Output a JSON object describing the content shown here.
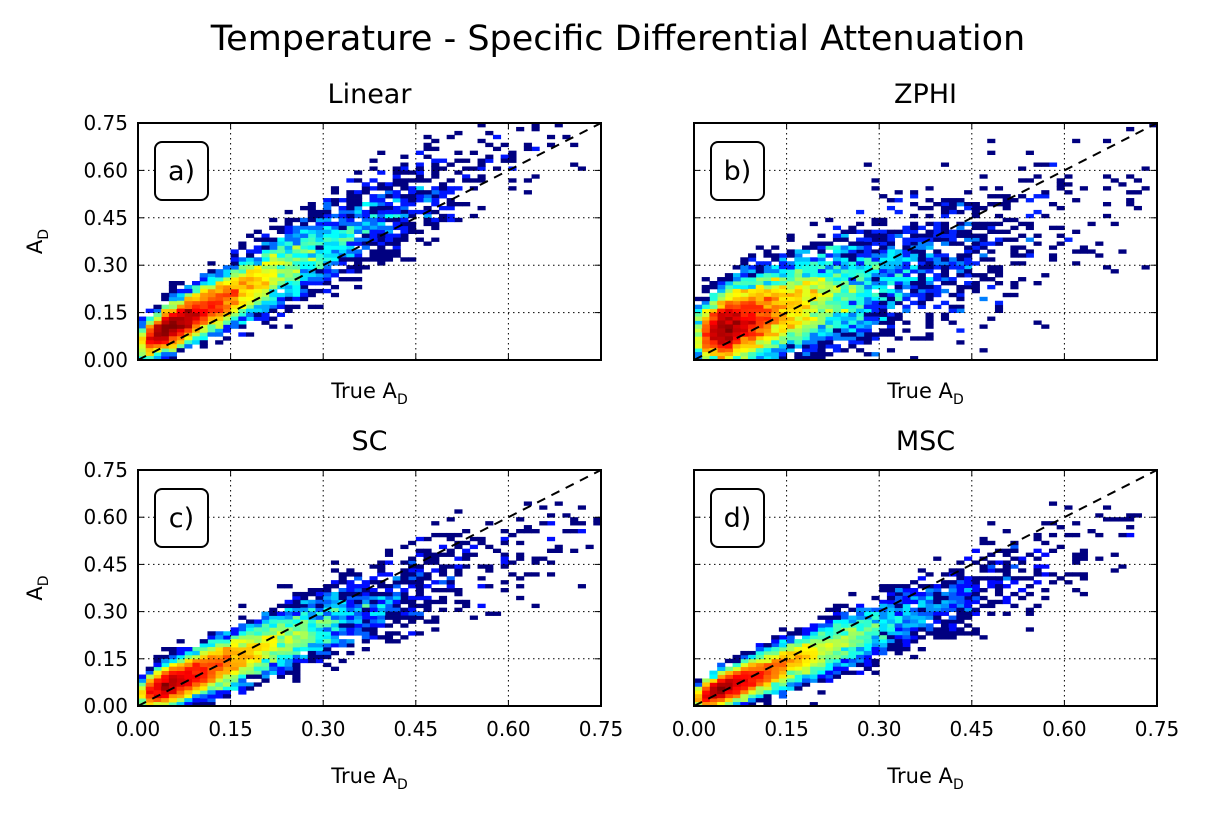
{
  "figure": {
    "title": "Temperature - Specific Differential Attenuation"
  },
  "chart_data": [
    {
      "type": "heatmap",
      "panel_label": "a)",
      "title": "Linear",
      "xlabel": "True A",
      "xlabel_sub": "D",
      "ylabel": "A",
      "ylabel_sub": "D",
      "xlim": [
        0,
        0.75
      ],
      "ylim": [
        0,
        0.75
      ],
      "x_ticks": [
        "0.00",
        "0.15",
        "0.30",
        "0.45",
        "0.60",
        "0.75"
      ],
      "x_ticks_shown": false,
      "y_ticks": [
        "0.00",
        "0.15",
        "0.30",
        "0.45",
        "0.60",
        "0.75"
      ],
      "y_ticks_shown": true,
      "grid": "dotted",
      "reference_line": "1:1 dashed",
      "colormap": "jet",
      "distribution": {
        "slope": 1.02,
        "intercept": 0.05,
        "core_spread": 0.025,
        "scatter_spread": 0.06,
        "x_peak": 0.05,
        "x_max": 0.72,
        "seed": 11
      }
    },
    {
      "type": "heatmap",
      "panel_label": "b)",
      "title": "ZPHI",
      "xlabel": "True A",
      "xlabel_sub": "D",
      "ylabel": "",
      "ylabel_sub": "",
      "xlim": [
        0,
        0.75
      ],
      "ylim": [
        0,
        0.75
      ],
      "x_ticks": [
        "0.00",
        "0.15",
        "0.30",
        "0.45",
        "0.60",
        "0.75"
      ],
      "x_ticks_shown": false,
      "y_ticks": [
        "0.00",
        "0.15",
        "0.30",
        "0.45",
        "0.60",
        "0.75"
      ],
      "y_ticks_shown": false,
      "grid": "dotted",
      "reference_line": "1:1 dashed",
      "colormap": "jet",
      "distribution": {
        "slope": 0.62,
        "intercept": 0.07,
        "core_spread": 0.045,
        "scatter_spread": 0.08,
        "x_peak": 0.05,
        "x_max": 0.75,
        "seed": 23
      }
    },
    {
      "type": "heatmap",
      "panel_label": "c)",
      "title": "SC",
      "xlabel": "True A",
      "xlabel_sub": "D",
      "ylabel": "A",
      "ylabel_sub": "D",
      "xlim": [
        0,
        0.75
      ],
      "ylim": [
        0,
        0.75
      ],
      "x_ticks": [
        "0.00",
        "0.15",
        "0.30",
        "0.45",
        "0.60",
        "0.75"
      ],
      "x_ticks_shown": true,
      "y_ticks": [
        "0.00",
        "0.15",
        "0.30",
        "0.45",
        "0.60",
        "0.75"
      ],
      "y_ticks_shown": true,
      "grid": "dotted",
      "reference_line": "1:1 dashed",
      "colormap": "jet",
      "distribution": {
        "slope": 0.76,
        "intercept": 0.03,
        "core_spread": 0.025,
        "scatter_spread": 0.045,
        "x_peak": 0.05,
        "x_max": 0.75,
        "seed": 37
      }
    },
    {
      "type": "heatmap",
      "panel_label": "d)",
      "title": "MSC",
      "xlabel": "True A",
      "xlabel_sub": "D",
      "ylabel": "",
      "ylabel_sub": "",
      "xlim": [
        0,
        0.75
      ],
      "ylim": [
        0,
        0.75
      ],
      "x_ticks": [
        "0.00",
        "0.15",
        "0.30",
        "0.45",
        "0.60",
        "0.75"
      ],
      "x_ticks_shown": true,
      "y_ticks": [
        "0.00",
        "0.15",
        "0.30",
        "0.45",
        "0.60",
        "0.75"
      ],
      "y_ticks_shown": false,
      "grid": "dotted",
      "reference_line": "1:1 dashed",
      "colormap": "jet",
      "distribution": {
        "slope": 0.76,
        "intercept": 0.02,
        "core_spread": 0.02,
        "scatter_spread": 0.045,
        "x_peak": 0.04,
        "x_max": 0.75,
        "seed": 53
      }
    }
  ]
}
